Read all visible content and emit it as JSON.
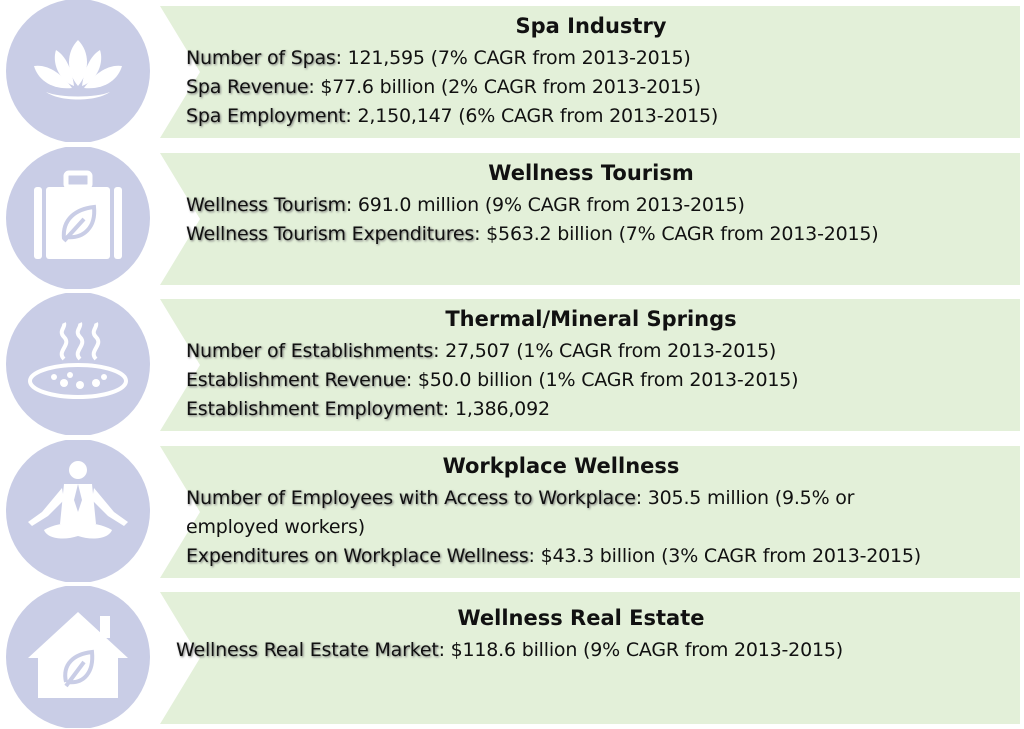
{
  "sections": [
    {
      "title": "Spa Industry",
      "items": [
        {
          "label": "Number of Spas",
          "value": ": 121,595 (7% CAGR from 2013-2015)"
        },
        {
          "label": "Spa Revenue",
          "value": ": $77.6 billion (2% CAGR from 2013-2015)"
        },
        {
          "label": "Spa Employment",
          "value": ": 2,150,147 (6% CAGR from 2013-2015)"
        }
      ]
    },
    {
      "title": "Wellness Tourism",
      "items": [
        {
          "label": "Wellness Tourism",
          "value": ": 691.0 million (9% CAGR from 2013-2015)"
        },
        {
          "label": "Wellness Tourism Expenditures",
          "value": ": $563.2 billion (7% CAGR from 2013-2015)"
        }
      ]
    },
    {
      "title": "Thermal/Mineral Springs",
      "items": [
        {
          "label": "Number of Establishments",
          "value": ": 27,507 (1% CAGR from 2013-2015)"
        },
        {
          "label": "Establishment Revenue",
          "value": ": $50.0 billion (1% CAGR from 2013-2015)"
        },
        {
          "label": "Establishment Employment",
          "value": ": 1,386,092"
        }
      ]
    },
    {
      "title": "Workplace Wellness",
      "items": [
        {
          "label": "Number of Employees with Access to Workplace",
          "value": ": 305.5 million (9.5% or employed workers)"
        },
        {
          "label": "Expenditures on Workplace Wellness",
          "value": ": $43.3 billion (3% CAGR from 2013-2015)"
        }
      ]
    },
    {
      "title": "Wellness Real Estate",
      "items": [
        {
          "label": "Wellness Real Estate Market",
          "value": ": $118.6 billion (9% CAGR from 2013-2015)"
        }
      ]
    }
  ]
}
